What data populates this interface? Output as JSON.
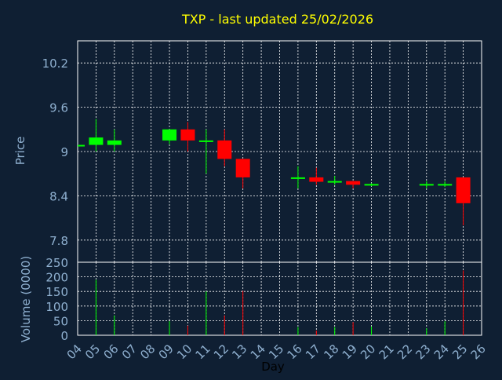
{
  "colors": {
    "background": "#0f1f33",
    "grid": "#ffffff",
    "axis_text": "#8fb0d0",
    "title": "#ffff00",
    "up": "#00ff00",
    "down": "#ff0000",
    "day_label": "#000000"
  },
  "chart_data": [
    {
      "type": "candlestick",
      "title": "TXP - last updated 25/02/2026",
      "ylabel": "Price",
      "ylim": [
        7.5,
        10.5
      ],
      "yticks": [
        "7.8",
        "8.4",
        "9",
        "9.6",
        "10.2"
      ],
      "ytick_values": [
        7.8,
        8.4,
        9.0,
        9.6,
        10.2
      ],
      "grid": true,
      "x_days": [
        "04",
        "05",
        "06",
        "07",
        "08",
        "09",
        "10",
        "11",
        "12",
        "13",
        "14",
        "15",
        "16",
        "17",
        "18",
        "19",
        "20",
        "21",
        "22",
        "23",
        "24",
        "25",
        "26"
      ],
      "candles": [
        {
          "day": "04",
          "open": 9.09,
          "close": 9.09,
          "high": 9.09,
          "low": 9.09
        },
        {
          "day": "05",
          "open": 9.09,
          "close": 9.19,
          "high": 9.44,
          "low": 9.0
        },
        {
          "day": "06",
          "open": 9.09,
          "close": 9.15,
          "high": 9.3,
          "low": 9.0
        },
        {
          "day": "09",
          "open": 9.15,
          "close": 9.3,
          "high": 9.3,
          "low": 9.1
        },
        {
          "day": "10",
          "open": 9.3,
          "close": 9.15,
          "high": 9.4,
          "low": 9.0
        },
        {
          "day": "11",
          "open": 9.13,
          "close": 9.15,
          "high": 9.3,
          "low": 8.7
        },
        {
          "day": "12",
          "open": 9.15,
          "close": 8.9,
          "high": 9.3,
          "low": 8.8
        },
        {
          "day": "13",
          "open": 8.9,
          "close": 8.65,
          "high": 8.9,
          "low": 8.5
        },
        {
          "day": "16",
          "open": 8.64,
          "close": 8.65,
          "high": 8.8,
          "low": 8.5
        },
        {
          "day": "17",
          "open": 8.65,
          "close": 8.59,
          "high": 8.78,
          "low": 8.55
        },
        {
          "day": "18",
          "open": 8.59,
          "close": 8.6,
          "high": 8.67,
          "low": 8.55
        },
        {
          "day": "19",
          "open": 8.6,
          "close": 8.55,
          "high": 8.6,
          "low": 8.5
        },
        {
          "day": "20",
          "open": 8.55,
          "close": 8.56,
          "high": 8.57,
          "low": 8.53
        },
        {
          "day": "23",
          "open": 8.55,
          "close": 8.56,
          "high": 8.6,
          "low": 8.5
        },
        {
          "day": "24",
          "open": 8.55,
          "close": 8.56,
          "high": 8.6,
          "low": 8.52
        },
        {
          "day": "25",
          "open": 8.65,
          "close": 8.3,
          "high": 8.65,
          "low": 8.0
        }
      ]
    },
    {
      "type": "bar",
      "ylabel": "Volume (0000)",
      "xlabel": "Day",
      "ylim": [
        0,
        250
      ],
      "yticks": [
        "0",
        "50",
        "100",
        "150",
        "200",
        "250"
      ],
      "ytick_values": [
        0,
        50,
        100,
        150,
        200,
        250
      ],
      "categories": [
        "04",
        "05",
        "06",
        "07",
        "08",
        "09",
        "10",
        "11",
        "12",
        "13",
        "14",
        "15",
        "16",
        "17",
        "18",
        "19",
        "20",
        "21",
        "22",
        "23",
        "24",
        "25",
        "26"
      ],
      "bars": [
        {
          "day": "05",
          "value": 190,
          "dir": "up"
        },
        {
          "day": "06",
          "value": 68,
          "dir": "up"
        },
        {
          "day": "09",
          "value": 48,
          "dir": "up"
        },
        {
          "day": "10",
          "value": 33,
          "dir": "down"
        },
        {
          "day": "11",
          "value": 150,
          "dir": "up"
        },
        {
          "day": "12",
          "value": 68,
          "dir": "down"
        },
        {
          "day": "13",
          "value": 152,
          "dir": "down"
        },
        {
          "day": "16",
          "value": 28,
          "dir": "up"
        },
        {
          "day": "17",
          "value": 16,
          "dir": "down"
        },
        {
          "day": "18",
          "value": 28,
          "dir": "up"
        },
        {
          "day": "19",
          "value": 45,
          "dir": "down"
        },
        {
          "day": "20",
          "value": 30,
          "dir": "up"
        },
        {
          "day": "23",
          "value": 24,
          "dir": "up"
        },
        {
          "day": "24",
          "value": 48,
          "dir": "up"
        },
        {
          "day": "25",
          "value": 222,
          "dir": "down"
        }
      ]
    }
  ]
}
